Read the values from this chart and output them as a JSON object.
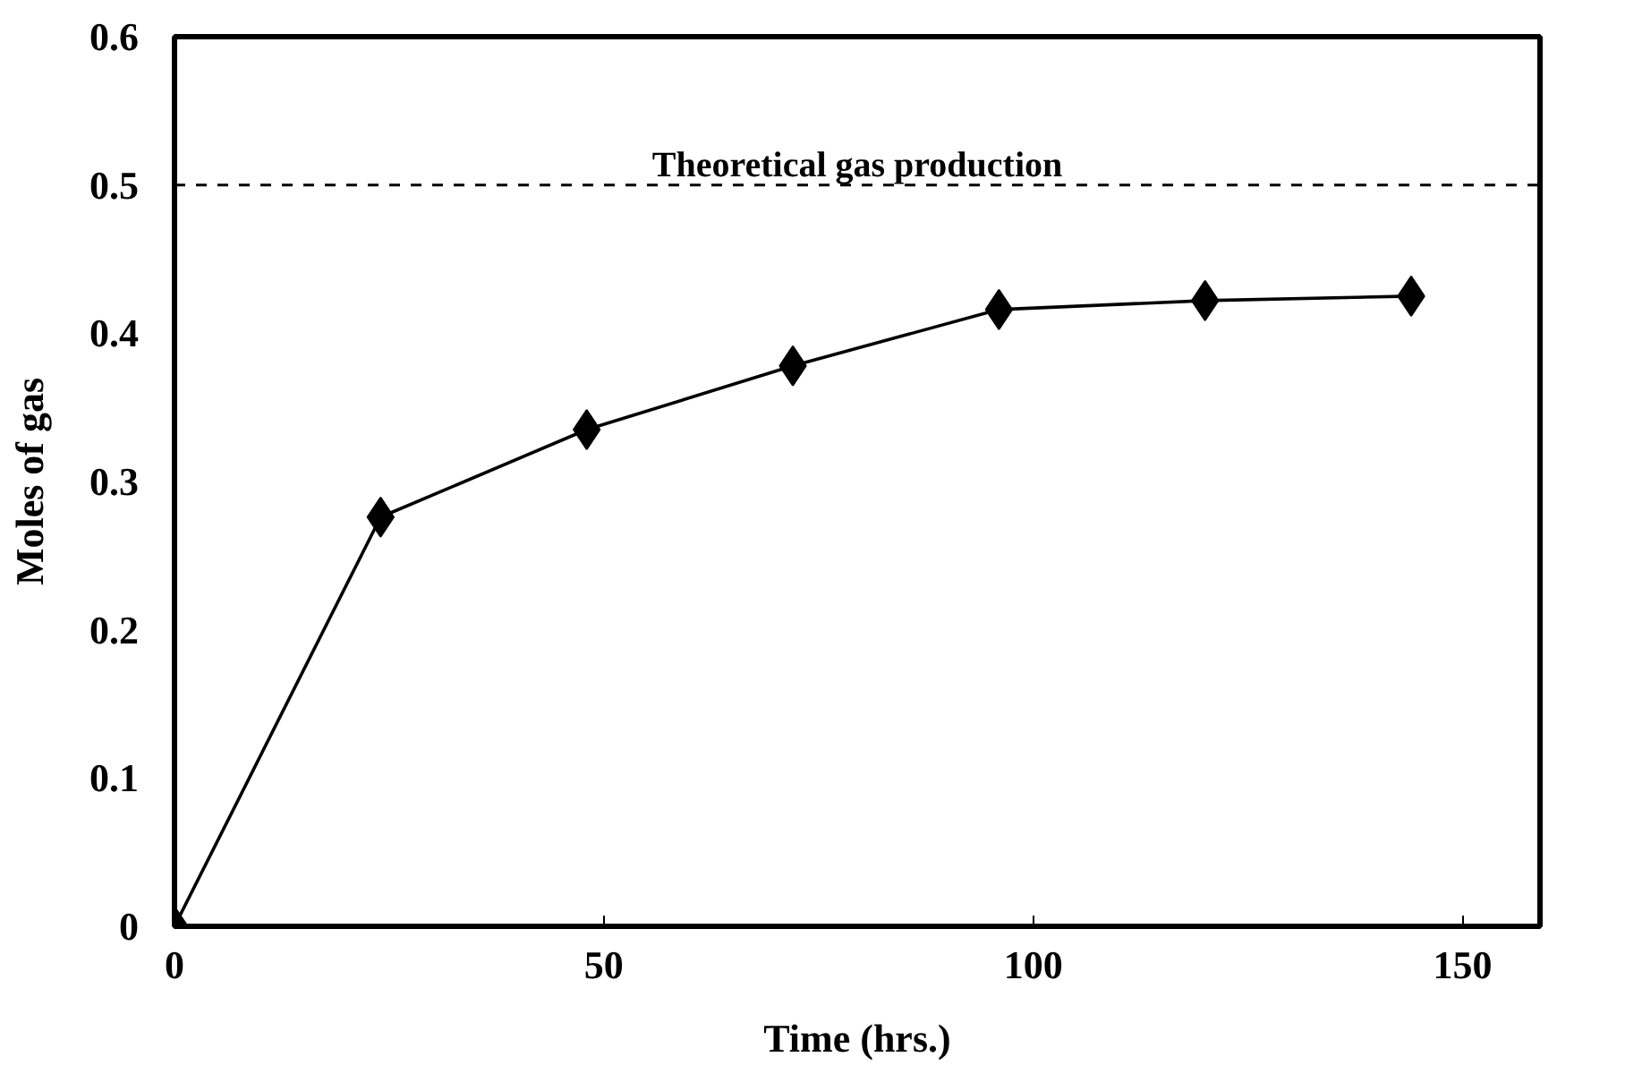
{
  "chart_data": {
    "type": "line",
    "xlabel": "Time (hrs.)",
    "ylabel": "Moles of gas",
    "x": [
      0,
      24,
      48,
      72,
      96,
      120,
      144
    ],
    "series": [
      {
        "color": "#000000",
        "values": [
          0,
          0.276,
          0.335,
          0.378,
          0.416,
          0.422,
          0.425
        ]
      }
    ],
    "xlim": [
      0,
      159
    ],
    "xticks": [
      0,
      50,
      100,
      150
    ],
    "ylim": [
      0,
      0.6
    ],
    "yticks": [
      0,
      0.1,
      0.2,
      0.3,
      0.4,
      0.5,
      0.6
    ],
    "ref_lines": [
      {
        "axis": "y",
        "value": 0.5,
        "label": "Theoretical gas production",
        "color": "#000000",
        "line_style": "dashed"
      }
    ],
    "marker": "diamond",
    "line_style": "solid",
    "grid": false
  }
}
